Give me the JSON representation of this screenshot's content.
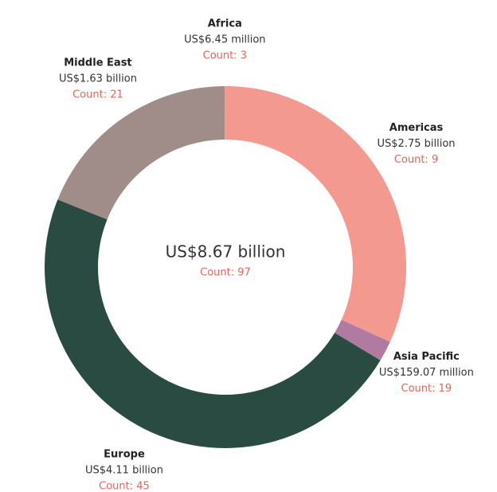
{
  "chart_data": {
    "type": "donut",
    "categories": [
      "Americas",
      "Asia Pacific",
      "Europe",
      "Middle East",
      "Africa"
    ],
    "values": [
      2750000000,
      159070000,
      4110000000,
      1630000000,
      6450000
    ],
    "value_labels": [
      "US$2.75 billion",
      "US$159.07 million",
      "US$4.11 billion",
      "US$1.63 billion",
      "US$6.45 million"
    ],
    "count_labels": [
      "Count: 9",
      "Count: 19",
      "Count: 45",
      "Count: 21",
      "Count: 3"
    ],
    "colors": [
      "#f4998f",
      "#b07aa1",
      "#2a4b42",
      "#a08c88",
      "#e0a58a"
    ],
    "total_label": "US$8.67 billion",
    "total_count_label": "Count: 97"
  }
}
